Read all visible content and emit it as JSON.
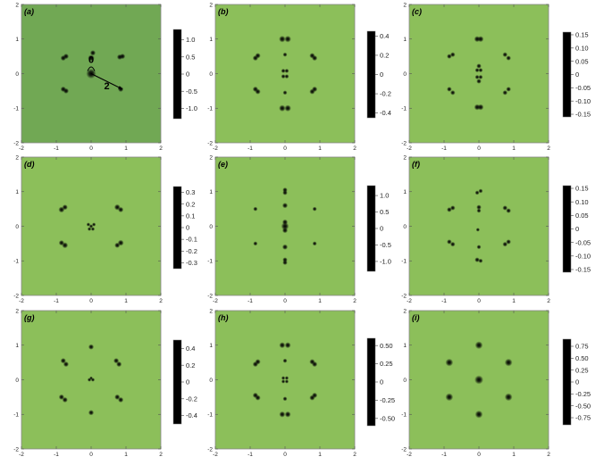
{
  "chart_data": [
    {
      "type": "heatmap",
      "label": "(a)",
      "xlim": [
        -2,
        2
      ],
      "ylim": [
        -2,
        2
      ],
      "x_ticks": [
        "-2",
        "-1",
        "0",
        "1",
        "2"
      ],
      "y_ticks": [
        "-2",
        "-1",
        "0",
        "1",
        "2"
      ],
      "background": "#71a854",
      "colorbar": {
        "ticks": [
          1.0,
          0.5,
          0,
          -0.5,
          -1.0
        ],
        "labels": [
          "1.0",
          "0.5",
          "0",
          "-0.5",
          "-1.0"
        ],
        "range": [
          -1.3,
          1.3
        ]
      },
      "annotations": [
        "0",
        "2"
      ],
      "features": [
        {
          "x": 0.0,
          "y": 0.0,
          "v": -1.0,
          "s": 0.09
        },
        {
          "x": 0.0,
          "y": 0.45,
          "v": 0.15,
          "s": 0.06
        },
        {
          "x": 0.05,
          "y": 0.6,
          "v": -0.25,
          "s": 0.05
        },
        {
          "x": -0.8,
          "y": 0.45,
          "v": -0.3,
          "s": 0.05
        },
        {
          "x": -0.72,
          "y": 0.5,
          "v": 0.25,
          "s": 0.05
        },
        {
          "x": 0.82,
          "y": 0.48,
          "v": -0.3,
          "s": 0.05
        },
        {
          "x": 0.9,
          "y": 0.5,
          "v": 0.25,
          "s": 0.05
        },
        {
          "x": -0.8,
          "y": -0.45,
          "v": -0.3,
          "s": 0.05
        },
        {
          "x": -0.72,
          "y": -0.5,
          "v": 0.25,
          "s": 0.05
        },
        {
          "x": 0.85,
          "y": -0.45,
          "v": 0.35,
          "s": 0.05
        }
      ]
    },
    {
      "type": "heatmap",
      "label": "(b)",
      "xlim": [
        -2,
        2
      ],
      "ylim": [
        -2,
        2
      ],
      "x_ticks": [
        "-2",
        "-1",
        "0",
        "1",
        "2"
      ],
      "y_ticks": [
        "-2",
        "-1",
        "0",
        "1",
        "2"
      ],
      "background": "#8cbf5a",
      "colorbar": {
        "ticks": [
          0.4,
          0.2,
          0,
          -0.2,
          -0.4
        ],
        "labels": [
          "0.4",
          "0.2",
          "0",
          "-0.2",
          "-0.4"
        ],
        "range": [
          -0.45,
          0.45
        ]
      },
      "features": [
        {
          "x": -0.08,
          "y": 1.0,
          "v": 0.4,
          "s": 0.06
        },
        {
          "x": 0.08,
          "y": 1.0,
          "v": -0.4,
          "s": 0.06
        },
        {
          "x": -0.08,
          "y": -1.0,
          "v": -0.4,
          "s": 0.06
        },
        {
          "x": 0.08,
          "y": -1.0,
          "v": 0.4,
          "s": 0.06
        },
        {
          "x": -0.85,
          "y": 0.45,
          "v": 0.2,
          "s": 0.05
        },
        {
          "x": -0.78,
          "y": 0.52,
          "v": -0.25,
          "s": 0.05
        },
        {
          "x": 0.78,
          "y": 0.52,
          "v": -0.25,
          "s": 0.05
        },
        {
          "x": 0.85,
          "y": 0.45,
          "v": 0.2,
          "s": 0.05
        },
        {
          "x": -0.85,
          "y": -0.45,
          "v": -0.25,
          "s": 0.05
        },
        {
          "x": -0.78,
          "y": -0.52,
          "v": 0.2,
          "s": 0.05
        },
        {
          "x": 0.78,
          "y": -0.52,
          "v": 0.2,
          "s": 0.05
        },
        {
          "x": 0.85,
          "y": -0.45,
          "v": -0.25,
          "s": 0.05
        },
        {
          "x": -0.05,
          "y": 0.08,
          "v": 0.15,
          "s": 0.04
        },
        {
          "x": 0.05,
          "y": 0.08,
          "v": -0.15,
          "s": 0.04
        },
        {
          "x": -0.05,
          "y": -0.08,
          "v": -0.15,
          "s": 0.04
        },
        {
          "x": 0.05,
          "y": -0.08,
          "v": 0.15,
          "s": 0.04
        },
        {
          "x": 0.0,
          "y": 0.55,
          "v": 0.1,
          "s": 0.04
        },
        {
          "x": 0.0,
          "y": -0.55,
          "v": 0.1,
          "s": 0.04
        }
      ]
    },
    {
      "type": "heatmap",
      "label": "(c)",
      "xlim": [
        -2,
        2
      ],
      "ylim": [
        -2,
        2
      ],
      "x_ticks": [
        "-2",
        "-1",
        "0",
        "1",
        "2"
      ],
      "y_ticks": [
        "-2",
        "-1",
        "0",
        "1",
        "2"
      ],
      "background": "#8cbf5a",
      "colorbar": {
        "ticks": [
          0.15,
          0.1,
          0.05,
          0,
          -0.05,
          -0.1,
          -0.15
        ],
        "labels": [
          "0.15",
          "0.10",
          "0.05",
          "0",
          "-0.05",
          "-0.10",
          "-0.15"
        ],
        "range": [
          -0.16,
          0.16
        ]
      },
      "features": [
        {
          "x": -0.05,
          "y": 1.0,
          "v": -0.1,
          "s": 0.055
        },
        {
          "x": 0.05,
          "y": 1.0,
          "v": -0.1,
          "s": 0.055
        },
        {
          "x": -0.05,
          "y": -0.97,
          "v": -0.12,
          "s": 0.055
        },
        {
          "x": 0.05,
          "y": -0.97,
          "v": -0.12,
          "s": 0.055
        },
        {
          "x": -0.85,
          "y": 0.5,
          "v": 0.12,
          "s": 0.045
        },
        {
          "x": -0.75,
          "y": 0.55,
          "v": -0.1,
          "s": 0.045
        },
        {
          "x": 0.75,
          "y": 0.55,
          "v": -0.1,
          "s": 0.045
        },
        {
          "x": 0.85,
          "y": 0.45,
          "v": 0.13,
          "s": 0.045
        },
        {
          "x": -0.85,
          "y": -0.45,
          "v": 0.13,
          "s": 0.045
        },
        {
          "x": -0.75,
          "y": -0.55,
          "v": -0.1,
          "s": 0.045
        },
        {
          "x": 0.75,
          "y": -0.55,
          "v": -0.1,
          "s": 0.045
        },
        {
          "x": 0.85,
          "y": -0.45,
          "v": 0.13,
          "s": 0.045
        },
        {
          "x": 0.0,
          "y": 0.22,
          "v": -0.08,
          "s": 0.045
        },
        {
          "x": -0.05,
          "y": 0.1,
          "v": 0.06,
          "s": 0.04
        },
        {
          "x": 0.05,
          "y": 0.1,
          "v": 0.06,
          "s": 0.04
        },
        {
          "x": 0.0,
          "y": -0.22,
          "v": -0.08,
          "s": 0.045
        },
        {
          "x": -0.05,
          "y": -0.1,
          "v": 0.06,
          "s": 0.04
        },
        {
          "x": 0.05,
          "y": -0.1,
          "v": 0.06,
          "s": 0.04
        }
      ]
    },
    {
      "type": "heatmap",
      "label": "(d)",
      "xlim": [
        -2,
        2
      ],
      "ylim": [
        -2,
        2
      ],
      "x_ticks": [
        "-2",
        "-1",
        "0",
        "1",
        "2"
      ],
      "y_ticks": [
        "-2",
        "-1",
        "0",
        "1",
        "2"
      ],
      "background": "#8cbf5a",
      "colorbar": {
        "ticks": [
          0.3,
          0.2,
          0.1,
          0,
          -0.1,
          -0.2,
          -0.3
        ],
        "labels": [
          "0.3",
          "0.2",
          "0.1",
          "0",
          "-0.1",
          "-0.2",
          "-0.3"
        ],
        "range": [
          -0.35,
          0.35
        ]
      },
      "features": [
        {
          "x": -0.85,
          "y": 0.48,
          "v": -0.3,
          "s": 0.055
        },
        {
          "x": -0.75,
          "y": 0.55,
          "v": 0.3,
          "s": 0.05
        },
        {
          "x": 0.75,
          "y": 0.55,
          "v": -0.3,
          "s": 0.055
        },
        {
          "x": 0.85,
          "y": 0.48,
          "v": 0.3,
          "s": 0.05
        },
        {
          "x": -0.85,
          "y": -0.48,
          "v": 0.3,
          "s": 0.05
        },
        {
          "x": -0.75,
          "y": -0.55,
          "v": -0.3,
          "s": 0.055
        },
        {
          "x": 0.75,
          "y": -0.55,
          "v": 0.3,
          "s": 0.05
        },
        {
          "x": 0.85,
          "y": -0.48,
          "v": -0.3,
          "s": 0.055
        },
        {
          "x": -0.08,
          "y": 0.05,
          "v": 0.12,
          "s": 0.035
        },
        {
          "x": 0.08,
          "y": 0.05,
          "v": 0.12,
          "s": 0.035
        },
        {
          "x": 0.0,
          "y": 0.0,
          "v": -0.12,
          "s": 0.035
        },
        {
          "x": -0.05,
          "y": -0.08,
          "v": 0.1,
          "s": 0.035
        },
        {
          "x": 0.05,
          "y": -0.08,
          "v": 0.1,
          "s": 0.035
        }
      ]
    },
    {
      "type": "heatmap",
      "label": "(e)",
      "xlim": [
        -2,
        2
      ],
      "ylim": [
        -2,
        2
      ],
      "x_ticks": [
        "-2",
        "-1",
        "0",
        "1",
        "2"
      ],
      "y_ticks": [
        "-2",
        "-1",
        "0",
        "1",
        "2"
      ],
      "background": "#8cbf5a",
      "colorbar": {
        "ticks": [
          1.0,
          0.5,
          0,
          -0.5,
          -1.0
        ],
        "labels": [
          "1.0",
          "0.5",
          "0",
          "-0.5",
          "-1.0"
        ],
        "range": [
          -1.3,
          1.3
        ]
      },
      "features": [
        {
          "x": 0.0,
          "y": 0.0,
          "v": -0.9,
          "s": 0.07
        },
        {
          "x": 0.0,
          "y": 0.12,
          "v": 0.25,
          "s": 0.05
        },
        {
          "x": 0.0,
          "y": -0.12,
          "v": 0.25,
          "s": 0.05
        },
        {
          "x": 0.0,
          "y": 1.05,
          "v": 0.2,
          "s": 0.045
        },
        {
          "x": 0.0,
          "y": 0.97,
          "v": -0.2,
          "s": 0.045
        },
        {
          "x": 0.0,
          "y": -1.05,
          "v": 0.2,
          "s": 0.045
        },
        {
          "x": 0.0,
          "y": -0.97,
          "v": -0.2,
          "s": 0.045
        },
        {
          "x": 0.0,
          "y": 0.6,
          "v": 0.35,
          "s": 0.05
        },
        {
          "x": 0.0,
          "y": -0.6,
          "v": 0.35,
          "s": 0.05
        },
        {
          "x": -0.85,
          "y": 0.5,
          "v": 0.1,
          "s": 0.04
        },
        {
          "x": 0.85,
          "y": 0.5,
          "v": 0.1,
          "s": 0.04
        },
        {
          "x": -0.85,
          "y": -0.5,
          "v": 0.1,
          "s": 0.04
        },
        {
          "x": 0.85,
          "y": -0.5,
          "v": 0.1,
          "s": 0.04
        }
      ]
    },
    {
      "type": "heatmap",
      "label": "(f)",
      "xlim": [
        -2,
        2
      ],
      "ylim": [
        -2,
        2
      ],
      "x_ticks": [
        "-2",
        "-1",
        "0",
        "1",
        "2"
      ],
      "y_ticks": [
        "-2",
        "-1",
        "0",
        "1",
        "2"
      ],
      "background": "#8cbf5a",
      "colorbar": {
        "ticks": [
          0.15,
          0.1,
          0.05,
          0,
          -0.05,
          -0.1,
          -0.15
        ],
        "labels": [
          "0.15",
          "0.10",
          "0.05",
          "0",
          "-0.05",
          "-0.10",
          "-0.15"
        ],
        "range": [
          -0.16,
          0.16
        ]
      },
      "features": [
        {
          "x": -0.05,
          "y": 0.97,
          "v": 0.1,
          "s": 0.04
        },
        {
          "x": 0.05,
          "y": 1.02,
          "v": -0.1,
          "s": 0.04
        },
        {
          "x": -0.05,
          "y": -0.97,
          "v": -0.12,
          "s": 0.045
        },
        {
          "x": 0.05,
          "y": -1.0,
          "v": 0.08,
          "s": 0.04
        },
        {
          "x": -0.85,
          "y": 0.48,
          "v": 0.12,
          "s": 0.045
        },
        {
          "x": -0.75,
          "y": 0.53,
          "v": -0.13,
          "s": 0.045
        },
        {
          "x": 0.75,
          "y": 0.53,
          "v": -0.13,
          "s": 0.045
        },
        {
          "x": 0.85,
          "y": 0.45,
          "v": 0.1,
          "s": 0.045
        },
        {
          "x": -0.85,
          "y": -0.45,
          "v": -0.12,
          "s": 0.045
        },
        {
          "x": -0.75,
          "y": -0.52,
          "v": 0.1,
          "s": 0.045
        },
        {
          "x": 0.75,
          "y": -0.52,
          "v": 0.12,
          "s": 0.045
        },
        {
          "x": 0.85,
          "y": -0.45,
          "v": -0.1,
          "s": 0.045
        },
        {
          "x": 0.0,
          "y": 0.55,
          "v": -0.1,
          "s": 0.045
        },
        {
          "x": 0.0,
          "y": 0.45,
          "v": 0.06,
          "s": 0.04
        },
        {
          "x": 0.0,
          "y": -0.6,
          "v": 0.1,
          "s": 0.04
        },
        {
          "x": -0.03,
          "y": -0.1,
          "v": 0.08,
          "s": 0.035
        }
      ]
    },
    {
      "type": "heatmap",
      "label": "(g)",
      "xlim": [
        -2,
        2
      ],
      "ylim": [
        -2,
        2
      ],
      "x_ticks": [
        "-2",
        "-1",
        "0",
        "1",
        "2"
      ],
      "y_ticks": [
        "-2",
        "-1",
        "0",
        "1",
        "2"
      ],
      "background": "#8cbf5a",
      "colorbar": {
        "ticks": [
          0.4,
          0.2,
          0,
          -0.2,
          -0.4
        ],
        "labels": [
          "0.4",
          "0.2",
          "0",
          "-0.2",
          "-0.4"
        ],
        "range": [
          -0.5,
          0.5
        ]
      },
      "features": [
        {
          "x": -0.8,
          "y": 0.55,
          "v": 0.45,
          "s": 0.05
        },
        {
          "x": -0.72,
          "y": 0.45,
          "v": -0.45,
          "s": 0.05
        },
        {
          "x": 0.72,
          "y": 0.55,
          "v": 0.45,
          "s": 0.05
        },
        {
          "x": 0.8,
          "y": 0.45,
          "v": -0.45,
          "s": 0.05
        },
        {
          "x": -0.85,
          "y": -0.5,
          "v": -0.45,
          "s": 0.05
        },
        {
          "x": -0.75,
          "y": -0.58,
          "v": 0.45,
          "s": 0.05
        },
        {
          "x": 0.75,
          "y": -0.5,
          "v": -0.45,
          "s": 0.05
        },
        {
          "x": 0.85,
          "y": -0.58,
          "v": 0.45,
          "s": 0.05
        },
        {
          "x": -0.05,
          "y": 0.0,
          "v": 0.08,
          "s": 0.035
        },
        {
          "x": 0.05,
          "y": 0.0,
          "v": 0.08,
          "s": 0.035
        },
        {
          "x": 0.0,
          "y": 0.05,
          "v": -0.06,
          "s": 0.03
        },
        {
          "x": 0.0,
          "y": 0.95,
          "v": -0.05,
          "s": 0.05
        },
        {
          "x": 0.0,
          "y": -0.95,
          "v": -0.05,
          "s": 0.05
        }
      ]
    },
    {
      "type": "heatmap",
      "label": "(h)",
      "xlim": [
        -2,
        2
      ],
      "ylim": [
        -2,
        2
      ],
      "x_ticks": [
        "-2",
        "-1",
        "0",
        "1",
        "2"
      ],
      "y_ticks": [
        "-2",
        "-1",
        "0",
        "1",
        "2"
      ],
      "background": "#8cbf5a",
      "colorbar": {
        "ticks": [
          0.5,
          0.25,
          0,
          -0.25,
          -0.5
        ],
        "labels": [
          "0.50",
          "0.25",
          "0",
          "-0.25",
          "-0.50"
        ],
        "range": [
          -0.6,
          0.6
        ]
      },
      "features": [
        {
          "x": -0.08,
          "y": 1.0,
          "v": -0.55,
          "s": 0.055
        },
        {
          "x": 0.08,
          "y": 1.0,
          "v": 0.55,
          "s": 0.055
        },
        {
          "x": -0.08,
          "y": -1.0,
          "v": 0.55,
          "s": 0.055
        },
        {
          "x": 0.08,
          "y": -1.0,
          "v": -0.55,
          "s": 0.055
        },
        {
          "x": -0.85,
          "y": 0.45,
          "v": -0.3,
          "s": 0.05
        },
        {
          "x": -0.78,
          "y": 0.52,
          "v": 0.2,
          "s": 0.05
        },
        {
          "x": 0.78,
          "y": 0.52,
          "v": 0.2,
          "s": 0.05
        },
        {
          "x": 0.85,
          "y": 0.45,
          "v": -0.3,
          "s": 0.05
        },
        {
          "x": -0.85,
          "y": -0.45,
          "v": 0.2,
          "s": 0.05
        },
        {
          "x": -0.78,
          "y": -0.52,
          "v": -0.3,
          "s": 0.05
        },
        {
          "x": 0.78,
          "y": -0.52,
          "v": -0.3,
          "s": 0.05
        },
        {
          "x": 0.85,
          "y": -0.45,
          "v": 0.2,
          "s": 0.05
        },
        {
          "x": -0.05,
          "y": 0.05,
          "v": 0.12,
          "s": 0.035
        },
        {
          "x": 0.05,
          "y": -0.05,
          "v": 0.12,
          "s": 0.035
        },
        {
          "x": 0.05,
          "y": 0.05,
          "v": -0.12,
          "s": 0.035
        },
        {
          "x": -0.05,
          "y": -0.05,
          "v": -0.12,
          "s": 0.035
        },
        {
          "x": 0.0,
          "y": 0.55,
          "v": 0.15,
          "s": 0.04
        },
        {
          "x": 0.0,
          "y": -0.55,
          "v": 0.15,
          "s": 0.04
        }
      ]
    },
    {
      "type": "heatmap",
      "label": "(i)",
      "xlim": [
        -2,
        2
      ],
      "ylim": [
        -2,
        2
      ],
      "x_ticks": [
        "-2",
        "-1",
        "0",
        "1",
        "2"
      ],
      "y_ticks": [
        "-2",
        "-1",
        "0",
        "1",
        "2"
      ],
      "background": "#8cbf5a",
      "colorbar": {
        "ticks": [
          0.75,
          0.5,
          0.25,
          0,
          -0.25,
          -0.5,
          -0.75
        ],
        "labels": [
          "0.75",
          "0.50",
          "0.25",
          "0",
          "-0.25",
          "-0.50",
          "-0.75"
        ],
        "range": [
          -0.9,
          0.9
        ]
      },
      "features": [
        {
          "x": 0.0,
          "y": 0.0,
          "v": 0.9,
          "s": 0.08
        },
        {
          "x": 0.0,
          "y": 1.0,
          "v": 0.45,
          "s": 0.07
        },
        {
          "x": 0.0,
          "y": -1.0,
          "v": 0.45,
          "s": 0.07
        },
        {
          "x": -0.85,
          "y": 0.5,
          "v": 0.45,
          "s": 0.07
        },
        {
          "x": 0.85,
          "y": 0.5,
          "v": 0.45,
          "s": 0.07
        },
        {
          "x": -0.85,
          "y": -0.5,
          "v": 0.45,
          "s": 0.07
        },
        {
          "x": 0.85,
          "y": -0.5,
          "v": 0.45,
          "s": 0.07
        }
      ]
    }
  ]
}
